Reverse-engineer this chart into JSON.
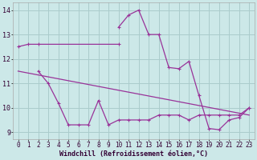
{
  "bg_color": "#cce8e8",
  "grid_color": "#aacccc",
  "line_color": "#993399",
  "xlabel": "Windchill (Refroidissement éolien,°C)",
  "ylim": [
    8.7,
    14.3
  ],
  "xlim": [
    -0.5,
    23.5
  ],
  "yticks": [
    9,
    10,
    11,
    12,
    13,
    14
  ],
  "xticks": [
    0,
    1,
    2,
    3,
    4,
    5,
    6,
    7,
    8,
    9,
    10,
    11,
    12,
    13,
    14,
    15,
    16,
    17,
    18,
    19,
    20,
    21,
    22,
    23
  ],
  "series1_x": [
    0,
    1,
    2,
    10
  ],
  "series1_y": [
    12.5,
    12.6,
    12.6,
    12.6
  ],
  "series2_x": [
    2,
    3,
    4,
    5,
    6,
    7,
    8,
    9,
    10,
    11,
    12,
    13,
    14,
    15,
    16,
    17,
    18,
    19,
    20,
    21,
    22,
    23
  ],
  "series2_y": [
    11.5,
    11.0,
    10.2,
    9.3,
    9.3,
    9.3,
    10.3,
    9.3,
    9.5,
    9.5,
    9.5,
    9.5,
    9.7,
    9.7,
    9.7,
    9.5,
    9.7,
    9.7,
    9.7,
    9.7,
    9.7,
    10.0
  ],
  "series3_x": [
    10,
    11,
    12,
    13,
    14,
    15,
    16,
    17,
    18,
    19,
    20,
    21,
    22,
    23
  ],
  "series3_y": [
    13.3,
    13.8,
    14.0,
    13.0,
    13.0,
    11.65,
    11.6,
    11.9,
    10.5,
    9.15,
    9.1,
    9.5,
    9.6,
    10.0
  ],
  "series4_x": [
    0,
    23
  ],
  "series4_y": [
    11.5,
    9.7
  ],
  "tick_fontsize": 5.5,
  "xlabel_fontsize": 6.0
}
